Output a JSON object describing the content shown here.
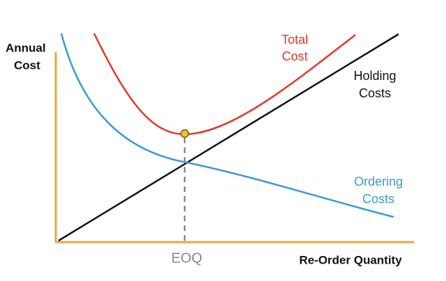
{
  "y_axis_label": [
    "Annual",
    "Cost"
  ],
  "x_axis_label": "Re-Order Quantity",
  "eoq_label": "EOQ",
  "curves": {
    "total": [
      "Total",
      "Cost"
    ],
    "holding": [
      "Holding",
      "Costs"
    ],
    "ordering": [
      "Ordering",
      "Costs"
    ]
  }
}
